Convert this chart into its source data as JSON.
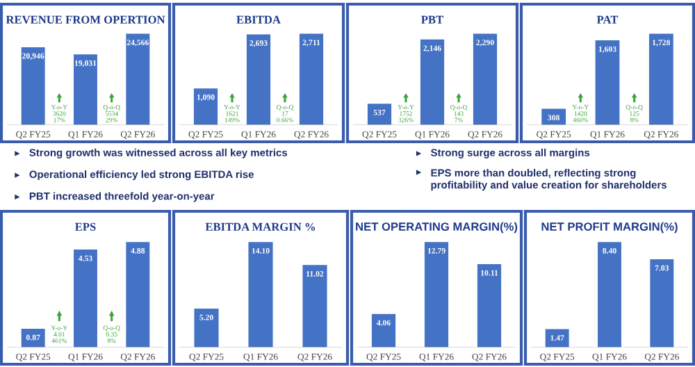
{
  "chart_data": [
    {
      "type": "bar",
      "title": "REVENUE FROM OPERTION",
      "categories": [
        "Q2 FY25",
        "Q1 FY26",
        "Q2 FY26"
      ],
      "values": [
        20946,
        19031,
        24566
      ],
      "value_labels": [
        "20,946",
        "19,031",
        "24,566"
      ],
      "color": "#4472c4",
      "annotations": [
        "Y-o-Y\n3620\n17%",
        "Q-o-Q\n5534\n29%"
      ]
    },
    {
      "type": "bar",
      "title": "EBITDA",
      "categories": [
        "Q2 FY25",
        "Q1 FY26",
        "Q2 FY26"
      ],
      "values": [
        1090,
        2693,
        2711
      ],
      "value_labels": [
        "1,090",
        "2,693",
        "2,711"
      ],
      "color": "#4472c4",
      "annotations": [
        "Y-o-Y\n1621\n149%",
        "Q-o-Q\n17\n0.66%"
      ]
    },
    {
      "type": "bar",
      "title": "PBT",
      "categories": [
        "Q2 FY25",
        "Q1 FY26",
        "Q2 FY26"
      ],
      "values": [
        537,
        2146,
        2290
      ],
      "value_labels": [
        "537",
        "2,146",
        "2,290"
      ],
      "color": "#4472c4",
      "annotations": [
        "Y-o-Y\n1752\n326%",
        "Q-o-Q\n143\n7%"
      ]
    },
    {
      "type": "bar",
      "title": "PAT",
      "categories": [
        "Q2 FY25",
        "Q1 FY26",
        "Q2 FY26"
      ],
      "values": [
        308,
        1603,
        1728
      ],
      "value_labels": [
        "308",
        "1,603",
        "1,728"
      ],
      "color": "#4472c4",
      "annotations": [
        "Y-o-Y\n1420\n460%",
        "Q-o-Q\n125\n8%"
      ]
    },
    {
      "type": "other",
      "annotations": [
        "Strong growth was witnessed across all key metrics",
        "Operational efficiency led strong EBITDA rise",
        "PBT increased threefold year-on-year",
        "Strong surge across all margins",
        "EPS more than doubled, reflecting strong\nprofitability and value creation for shareholders"
      ]
    },
    {
      "type": "bar",
      "title": "EPS",
      "categories": [
        "Q2 FY25",
        "Q1 FY26",
        "Q2 FY26"
      ],
      "values": [
        0.87,
        4.53,
        4.88
      ],
      "color": "#4472c4",
      "data_labels": true,
      "annotations": [
        "Y-o-Y\n4.01\n461%",
        "Q-o-Q\n0.35\n8%"
      ]
    },
    {
      "type": "bar",
      "title": "EBITDA MARGIN %",
      "categories": [
        "Q2 FY25",
        "Q1 FY26",
        "Q2 FY26"
      ],
      "values": [
        5.2,
        14.1,
        11.02
      ],
      "value_labels": [
        "5.20",
        "14.10",
        "11.02"
      ],
      "color": "#4472c4"
    },
    {
      "type": "bar",
      "title": "NET OPERATING MARGIN(%)",
      "categories": [
        "Q2 FY25",
        "Q1 FY26",
        "Q2 FY26"
      ],
      "values": [
        4.06,
        12.79,
        10.11
      ],
      "color": "#4472c4",
      "data_labels": true
    },
    {
      "type": "bar",
      "title": "NET PROFIT MARGIN(%)",
      "categories": [
        "Q2 FY25",
        "Q1 FY26",
        "Q2 FY26"
      ],
      "values": [
        1.47,
        8.4,
        7.03
      ],
      "value_labels": [
        "1.47",
        "8.40",
        "7.03"
      ],
      "color": "#4472c4"
    }
  ]
}
